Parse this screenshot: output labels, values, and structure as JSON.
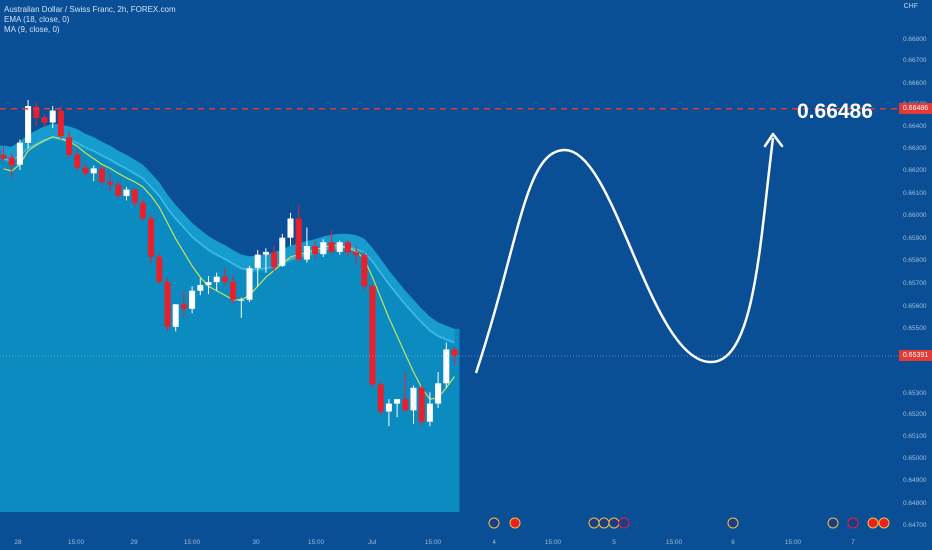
{
  "legend": {
    "symbol": "Australian Dollar / Swiss Franc, 2h, FOREX.com",
    "ema": "EMA (18, close, 0)",
    "ma": "MA (9, close, 0)"
  },
  "axis_currency": "CHF",
  "target_label": "0.66486",
  "target_tag": "0.66486",
  "current_tag": "0.65391",
  "colors": {
    "background": "#0a4f96",
    "history_fill": "#0b8bc0",
    "ema": "#49c1e3",
    "ma": "#c6e35a",
    "up_candle": "#ffffff",
    "down_candle": "#e8202a",
    "target_line": "#e53935",
    "projection": "#ffffff"
  },
  "chart_data": {
    "type": "candlestick",
    "y_ticks": [
      "0.66800",
      "0.66700",
      "0.66600",
      "0.66500",
      "0.66400",
      "0.66300",
      "0.66200",
      "0.66100",
      "0.66000",
      "0.65900",
      "0.65800",
      "0.65700",
      "0.65600",
      "0.65500",
      "0.65300",
      "0.65200",
      "0.65100",
      "0.65000",
      "0.64900",
      "0.64800",
      "0.64700"
    ],
    "x_ticks": [
      "28",
      "15:00",
      "29",
      "15:00",
      "30",
      "15:00",
      "Jul",
      "15:00",
      "4",
      "15:00",
      "5",
      "15:00",
      "6",
      "15:00",
      "7"
    ],
    "ylim": [
      0.647,
      0.6695
    ],
    "target_price": 0.66486,
    "current_price": 0.65391,
    "candles": [
      [
        0.66282,
        0.66318,
        0.66255,
        0.66265
      ],
      [
        0.6627,
        0.6629,
        0.6618,
        0.66235
      ],
      [
        0.66238,
        0.6635,
        0.66215,
        0.66336
      ],
      [
        0.66335,
        0.66525,
        0.6631,
        0.66498
      ],
      [
        0.66495,
        0.66515,
        0.6641,
        0.66445
      ],
      [
        0.66448,
        0.6646,
        0.66405,
        0.66425
      ],
      [
        0.66425,
        0.66498,
        0.664,
        0.66478
      ],
      [
        0.66478,
        0.665,
        0.6635,
        0.66365
      ],
      [
        0.6636,
        0.6639,
        0.6627,
        0.66282
      ],
      [
        0.66283,
        0.6631,
        0.6621,
        0.66225
      ],
      [
        0.66225,
        0.66245,
        0.66185,
        0.662
      ],
      [
        0.662,
        0.66235,
        0.66165,
        0.66222
      ],
      [
        0.66222,
        0.66232,
        0.6615,
        0.66162
      ],
      [
        0.66162,
        0.662,
        0.6612,
        0.6615
      ],
      [
        0.6615,
        0.66165,
        0.6609,
        0.661
      ],
      [
        0.661,
        0.6614,
        0.6608,
        0.66128
      ],
      [
        0.66128,
        0.66135,
        0.6605,
        0.6607
      ],
      [
        0.6607,
        0.66085,
        0.6599,
        0.66
      ],
      [
        0.66,
        0.66015,
        0.658,
        0.6583
      ],
      [
        0.6583,
        0.65845,
        0.6571,
        0.6572
      ],
      [
        0.6572,
        0.6574,
        0.655,
        0.6552
      ],
      [
        0.6552,
        0.6562,
        0.655,
        0.6562
      ],
      [
        0.6562,
        0.6568,
        0.6556,
        0.656
      ],
      [
        0.656,
        0.657,
        0.6558,
        0.6568
      ],
      [
        0.6568,
        0.65735,
        0.6566,
        0.65705
      ],
      [
        0.65705,
        0.65745,
        0.65665,
        0.65718
      ],
      [
        0.65718,
        0.6576,
        0.6568,
        0.65742
      ],
      [
        0.65742,
        0.6578,
        0.657,
        0.6572
      ],
      [
        0.6572,
        0.6575,
        0.6562,
        0.6564
      ],
      [
        0.6564,
        0.6565,
        0.6556,
        0.6564
      ],
      [
        0.6564,
        0.6579,
        0.6563,
        0.6578
      ],
      [
        0.6578,
        0.6586,
        0.657,
        0.6584
      ],
      [
        0.6584,
        0.65868,
        0.6576,
        0.65852
      ],
      [
        0.6585,
        0.6588,
        0.6576,
        0.65785
      ],
      [
        0.6579,
        0.65932,
        0.65785,
        0.65915
      ],
      [
        0.65915,
        0.66025,
        0.6588,
        0.66
      ],
      [
        0.66,
        0.6606,
        0.6581,
        0.65818
      ],
      [
        0.65818,
        0.6596,
        0.65805,
        0.65878
      ],
      [
        0.65878,
        0.659,
        0.6582,
        0.65842
      ],
      [
        0.65842,
        0.65908,
        0.6583,
        0.65895
      ],
      [
        0.65895,
        0.65945,
        0.6584,
        0.65852
      ],
      [
        0.65852,
        0.65902,
        0.6584,
        0.65895
      ],
      [
        0.65895,
        0.65905,
        0.6583,
        0.6585
      ],
      [
        0.6585,
        0.6588,
        0.658,
        0.65838
      ],
      [
        0.65838,
        0.6585,
        0.6568,
        0.657
      ],
      [
        0.657,
        0.6571,
        0.6525,
        0.65265
      ],
      [
        0.65265,
        0.6528,
        0.6513,
        0.65145
      ],
      [
        0.65145,
        0.652,
        0.6508,
        0.6518
      ],
      [
        0.6518,
        0.652,
        0.6512,
        0.652
      ],
      [
        0.652,
        0.6532,
        0.6515,
        0.6515
      ],
      [
        0.6515,
        0.6526,
        0.6509,
        0.6525
      ],
      [
        0.6525,
        0.6526,
        0.6508,
        0.651
      ],
      [
        0.651,
        0.6523,
        0.6508,
        0.6518
      ],
      [
        0.6518,
        0.6532,
        0.6516,
        0.6527
      ],
      [
        0.6527,
        0.6545,
        0.6525,
        0.6542
      ],
      [
        0.6542,
        0.6543,
        0.6535,
        0.65391
      ]
    ],
    "ema": [
      0.66262,
      0.66258,
      0.6628,
      0.66312,
      0.6633,
      0.66348,
      0.6636,
      0.66355,
      0.66348,
      0.66335,
      0.66315,
      0.663,
      0.6628,
      0.66262,
      0.6624,
      0.66222,
      0.662,
      0.66178,
      0.6614,
      0.661,
      0.66045,
      0.66,
      0.6596,
      0.6592,
      0.6589,
      0.65862,
      0.6584,
      0.65822,
      0.658,
      0.6578,
      0.65772,
      0.65775,
      0.6578,
      0.6579,
      0.65802,
      0.6582,
      0.6583,
      0.6584,
      0.65848,
      0.6586,
      0.65868,
      0.65872,
      0.65872,
      0.65866,
      0.6585,
      0.6581,
      0.6576,
      0.6571,
      0.65665,
      0.6562,
      0.6558,
      0.6554,
      0.65505,
      0.6548,
      0.65465,
      0.65451
    ],
    "ma": [
      0.6622,
      0.6621,
      0.6624,
      0.663,
      0.66325,
      0.66345,
      0.66362,
      0.66352,
      0.6634,
      0.6632,
      0.6629,
      0.66265,
      0.6624,
      0.66222,
      0.662,
      0.6618,
      0.66162,
      0.6614,
      0.661,
      0.6605,
      0.6598,
      0.6591,
      0.6585,
      0.6579,
      0.6574,
      0.657,
      0.6568,
      0.6566,
      0.6564,
      0.6564,
      0.6566,
      0.657,
      0.6574,
      0.6577,
      0.658,
      0.6583,
      0.6584,
      0.6585,
      0.6586,
      0.65872,
      0.6588,
      0.6588,
      0.6587,
      0.65855,
      0.6582,
      0.6574,
      0.6565,
      0.6556,
      0.6548,
      0.654,
      0.6532,
      0.6525,
      0.652,
      0.65205,
      0.6525,
      0.653
    ]
  }
}
